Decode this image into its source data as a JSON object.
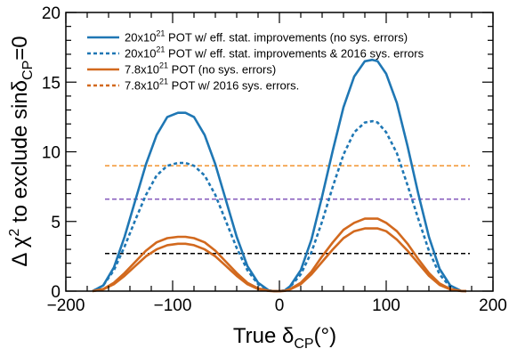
{
  "chart_data": {
    "type": "line",
    "xlabel": "True δ_CP(°)",
    "ylabel": "Δ χ² to exclude sinδ_CP=0",
    "xlim": [
      -200,
      200
    ],
    "ylim": [
      0,
      20
    ],
    "x_ticks": [
      -200,
      -100,
      0,
      100,
      200
    ],
    "x_tick_labels": [
      "−200",
      "−100",
      "0",
      "100",
      "200"
    ],
    "y_ticks": [
      0,
      5,
      10,
      15,
      20
    ],
    "y_tick_labels": [
      "0",
      "5",
      "10",
      "15",
      "20"
    ],
    "grid": false,
    "legend_position": "top-right",
    "legend_entries": [
      {
        "pre": "20x10",
        "sup": "21",
        "post": " POT w/ eff. stat. improvements (no sys. errors)"
      },
      {
        "pre": "20x10",
        "sup": "21",
        "post": " POT w/ eff. stat. improvements & 2016 sys. errors"
      },
      {
        "pre": "7.8x10",
        "sup": "21",
        "post": " POT (no sys. errors)"
      },
      {
        "pre": "7.8x10",
        "sup": "21",
        "post": " POT w/ 2016 sys. errors."
      }
    ],
    "series": [
      {
        "name": "20x10^21 POT w/ eff. stat. improvements (no sys. errors)",
        "color": "#1f77b4",
        "dash": "solid",
        "x": [
          -175,
          -165,
          -155,
          -145,
          -135,
          -125,
          -115,
          -105,
          -95,
          -88,
          -80,
          -70,
          -60,
          -50,
          -40,
          -30,
          -20,
          -10,
          -5,
          0,
          5,
          10,
          20,
          30,
          40,
          50,
          60,
          70,
          80,
          87,
          92,
          100,
          110,
          120,
          130,
          140,
          150,
          160,
          170,
          175
        ],
        "y": [
          0,
          0.4,
          1.7,
          3.9,
          6.5,
          9.1,
          11.2,
          12.5,
          12.8,
          12.8,
          12.5,
          11.2,
          9.1,
          6.5,
          3.9,
          1.8,
          0.6,
          0.05,
          0,
          0,
          0.05,
          0.35,
          1.5,
          3.7,
          6.8,
          10.1,
          13.2,
          15.4,
          16.5,
          16.6,
          16.5,
          15.6,
          13.5,
          10.4,
          7.0,
          3.9,
          1.6,
          0.4,
          0.02,
          0
        ]
      },
      {
        "name": "20x10^21 POT w/ eff. stat. improvements & 2016 sys. errors",
        "color": "#1f77b4",
        "dash": "dashed",
        "x": [
          -175,
          -165,
          -155,
          -145,
          -135,
          -125,
          -115,
          -105,
          -95,
          -88,
          -80,
          -70,
          -60,
          -50,
          -40,
          -30,
          -20,
          -10,
          -5,
          0,
          5,
          10,
          20,
          30,
          40,
          50,
          60,
          70,
          80,
          87,
          92,
          100,
          110,
          120,
          130,
          140,
          150,
          160,
          170,
          175
        ],
        "y": [
          0,
          0.4,
          1.5,
          3.2,
          5.1,
          6.9,
          8.3,
          9.0,
          9.2,
          9.2,
          9.0,
          8.3,
          6.9,
          5.0,
          3.1,
          1.5,
          0.5,
          0.05,
          0,
          0,
          0.05,
          0.3,
          1.2,
          2.8,
          5.0,
          7.5,
          9.8,
          11.4,
          12.1,
          12.2,
          12.1,
          11.4,
          9.9,
          7.6,
          5.2,
          2.9,
          1.2,
          0.3,
          0.02,
          0
        ]
      },
      {
        "name": "7.8x10^21 POT (no sys. errors)",
        "color": "#d2691e",
        "dash": "solid",
        "x": [
          -175,
          -165,
          -155,
          -145,
          -135,
          -125,
          -115,
          -105,
          -95,
          -88,
          -80,
          -70,
          -60,
          -50,
          -40,
          -30,
          -20,
          -10,
          -5,
          0,
          5,
          10,
          20,
          30,
          40,
          50,
          60,
          70,
          80,
          87,
          92,
          100,
          110,
          120,
          130,
          140,
          150,
          160,
          170,
          175
        ],
        "y": [
          0,
          0.15,
          0.6,
          1.3,
          2.1,
          2.9,
          3.5,
          3.8,
          3.9,
          3.9,
          3.8,
          3.5,
          2.9,
          2.1,
          1.3,
          0.6,
          0.2,
          0.02,
          0,
          0,
          0.02,
          0.15,
          0.6,
          1.4,
          2.5,
          3.5,
          4.4,
          4.9,
          5.2,
          5.2,
          5.2,
          4.9,
          4.3,
          3.4,
          2.3,
          1.3,
          0.55,
          0.15,
          0.01,
          0
        ]
      },
      {
        "name": "7.8x10^21 POT w/ 2016 sys. errors.",
        "color": "#d2691e",
        "dash": "solid",
        "x": [
          -175,
          -165,
          -155,
          -145,
          -135,
          -125,
          -115,
          -105,
          -95,
          -88,
          -80,
          -70,
          -60,
          -50,
          -40,
          -30,
          -20,
          -10,
          -5,
          0,
          5,
          10,
          20,
          30,
          40,
          50,
          60,
          70,
          80,
          87,
          92,
          100,
          110,
          120,
          130,
          140,
          150,
          160,
          170,
          175
        ],
        "y": [
          0,
          0.12,
          0.5,
          1.1,
          1.8,
          2.5,
          3.0,
          3.3,
          3.4,
          3.4,
          3.3,
          3.0,
          2.5,
          1.8,
          1.1,
          0.5,
          0.15,
          0.02,
          0,
          0,
          0.02,
          0.12,
          0.5,
          1.2,
          2.1,
          3.0,
          3.8,
          4.3,
          4.5,
          4.5,
          4.5,
          4.3,
          3.7,
          2.9,
          2.0,
          1.1,
          0.45,
          0.12,
          0.01,
          0
        ]
      }
    ],
    "reference_lines": [
      {
        "y": 9.0,
        "color": "#f39c3d"
      },
      {
        "y": 6.6,
        "color": "#8a5fbf"
      },
      {
        "y": 2.7,
        "color": "#000000"
      }
    ]
  }
}
